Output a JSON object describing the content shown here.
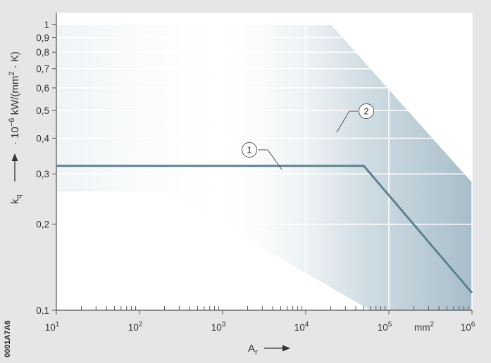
{
  "chart_data": {
    "type": "line",
    "x_scale": "log",
    "y_scale": "log",
    "xlim": [
      10,
      1000000
    ],
    "ylim": [
      0.1,
      1.1
    ],
    "grid": true,
    "x_ticks": [
      {
        "value": 10,
        "base": "10",
        "exp": "1"
      },
      {
        "value": 100,
        "base": "10",
        "exp": "2"
      },
      {
        "value": 1000,
        "base": "10",
        "exp": "3"
      },
      {
        "value": 10000,
        "base": "10",
        "exp": "4"
      },
      {
        "value": 100000,
        "base": "10",
        "exp": "5"
      },
      {
        "value": 1000000,
        "base": "10",
        "exp": "6"
      }
    ],
    "x_unit": {
      "base": "mm",
      "exp": "2"
    },
    "y_ticks": [
      {
        "value": 0.1,
        "label": "0,1"
      },
      {
        "value": 0.2,
        "label": "0,2"
      },
      {
        "value": 0.3,
        "label": "0,3"
      },
      {
        "value": 0.4,
        "label": "0,4"
      },
      {
        "value": 0.5,
        "label": "0,5"
      },
      {
        "value": 0.6,
        "label": "0,6"
      },
      {
        "value": 0.7,
        "label": "0,7"
      },
      {
        "value": 0.8,
        "label": "0,8"
      },
      {
        "value": 0.9,
        "label": "0,9"
      },
      {
        "value": 1.0,
        "label": "1"
      }
    ],
    "xlabel": {
      "base": "A",
      "sub": "r"
    },
    "ylabel": {
      "base": "k",
      "sub": "q",
      "unit_prefix": "· 10",
      "unit_exp": "−6",
      "unit_mid": " kW/(mm",
      "unit_exp2": "2",
      "unit_suffix": " · K)"
    },
    "series": [
      {
        "callout": "1",
        "color": "#5e8290",
        "points": [
          [
            10,
            0.32
          ],
          [
            50000,
            0.32
          ],
          [
            1000000,
            0.115
          ]
        ]
      }
    ],
    "band": {
      "callout": "2",
      "color": "#c3d3dc",
      "upper": [
        [
          10,
          1.0
        ],
        [
          20000,
          1.0
        ],
        [
          1000000,
          0.28
        ]
      ],
      "lower": [
        [
          10,
          0.26
        ],
        [
          200,
          0.26
        ],
        [
          60000,
          0.1
        ],
        [
          1000000,
          0.1
        ]
      ]
    },
    "colors": {
      "grid": "#ffffff",
      "axis": "#555555",
      "background": "#e6e6e8",
      "plot_background": "#ffffff"
    },
    "image_code": "0001A7A6"
  }
}
